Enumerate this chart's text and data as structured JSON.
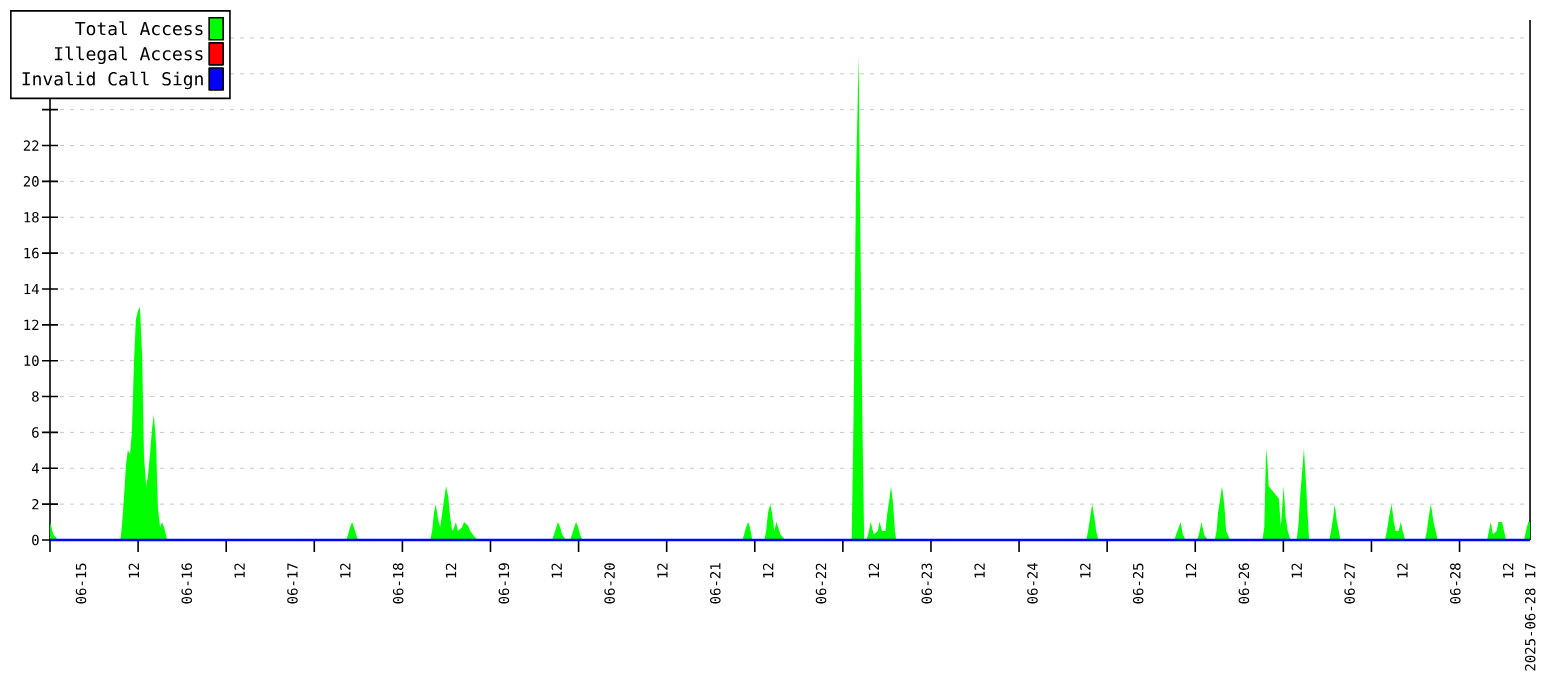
{
  "chart_data": {
    "type": "area",
    "xlim": [
      "2025-06-14T17:00",
      "2025-06-28T17:00"
    ],
    "ylim": [
      0,
      29
    ],
    "xticks": [
      {
        "value": "2025-06-15T00:00",
        "label": "06-15"
      },
      {
        "value": "2025-06-15T12:00",
        "label": "12"
      },
      {
        "value": "2025-06-16T00:00",
        "label": "06-16"
      },
      {
        "value": "2025-06-16T12:00",
        "label": "12"
      },
      {
        "value": "2025-06-17T00:00",
        "label": "06-17"
      },
      {
        "value": "2025-06-17T12:00",
        "label": "12"
      },
      {
        "value": "2025-06-18T00:00",
        "label": "06-18"
      },
      {
        "value": "2025-06-18T12:00",
        "label": "12"
      },
      {
        "value": "2025-06-19T00:00",
        "label": "06-19"
      },
      {
        "value": "2025-06-19T12:00",
        "label": "12"
      },
      {
        "value": "2025-06-20T00:00",
        "label": "06-20"
      },
      {
        "value": "2025-06-20T12:00",
        "label": "12"
      },
      {
        "value": "2025-06-21T00:00",
        "label": "06-21"
      },
      {
        "value": "2025-06-21T12:00",
        "label": "12"
      },
      {
        "value": "2025-06-22T00:00",
        "label": "06-22"
      },
      {
        "value": "2025-06-22T12:00",
        "label": "12"
      },
      {
        "value": "2025-06-23T00:00",
        "label": "06-23"
      },
      {
        "value": "2025-06-23T12:00",
        "label": "12"
      },
      {
        "value": "2025-06-24T00:00",
        "label": "06-24"
      },
      {
        "value": "2025-06-24T12:00",
        "label": "12"
      },
      {
        "value": "2025-06-25T00:00",
        "label": "06-25"
      },
      {
        "value": "2025-06-25T12:00",
        "label": "12"
      },
      {
        "value": "2025-06-26T00:00",
        "label": "06-26"
      },
      {
        "value": "2025-06-26T12:00",
        "label": "12"
      },
      {
        "value": "2025-06-27T00:00",
        "label": "06-27"
      },
      {
        "value": "2025-06-27T12:00",
        "label": "12"
      },
      {
        "value": "2025-06-28T00:00",
        "label": "06-28"
      },
      {
        "value": "2025-06-28T12:00",
        "label": "12"
      },
      {
        "value": "2025-06-28T17:00",
        "label": "2025-06-28 17"
      },
      {
        "value": "2025-06-14T17:00",
        "label": null
      },
      {
        "value": "2025-06-15T13:00",
        "label": null
      },
      {
        "value": "2025-06-16T09:00",
        "label": null
      },
      {
        "value": "2025-06-17T05:00",
        "label": null
      },
      {
        "value": "2025-06-18T01:00",
        "label": null
      },
      {
        "value": "2025-06-18T21:00",
        "label": null
      },
      {
        "value": "2025-06-19T17:00",
        "label": null
      },
      {
        "value": "2025-06-20T13:00",
        "label": null
      },
      {
        "value": "2025-06-21T09:00",
        "label": null
      },
      {
        "value": "2025-06-22T05:00",
        "label": null
      },
      {
        "value": "2025-06-23T01:00",
        "label": null
      },
      {
        "value": "2025-06-23T21:00",
        "label": null
      },
      {
        "value": "2025-06-24T17:00",
        "label": null
      },
      {
        "value": "2025-06-25T13:00",
        "label": null
      },
      {
        "value": "2025-06-26T09:00",
        "label": null
      },
      {
        "value": "2025-06-27T05:00",
        "label": null
      },
      {
        "value": "2025-06-28T01:00",
        "label": null
      }
    ],
    "yticks": [
      0,
      2,
      4,
      6,
      8,
      10,
      12,
      14,
      16,
      18,
      20,
      22,
      {
        "value": 24,
        "label": null
      },
      {
        "value": 26,
        "label": null
      },
      {
        "value": 28,
        "label": null
      }
    ],
    "grid": "y",
    "legend": "top left",
    "series": [
      {
        "name": "Total Access",
        "color": "#00ff00",
        "x": [
          "2025-06-14T17:00",
          "2025-06-14T17:45",
          "2025-06-14T18:50",
          "2025-06-15T09:00",
          "2025-06-15T09:20",
          "2025-06-15T09:50",
          "2025-06-15T10:15",
          "2025-06-15T10:40",
          "2025-06-15T11:10",
          "2025-06-15T11:35",
          "2025-06-15T12:05",
          "2025-06-15T12:30",
          "2025-06-15T13:00",
          "2025-06-15T13:25",
          "2025-06-15T13:55",
          "2025-06-15T14:20",
          "2025-06-15T14:50",
          "2025-06-15T15:15",
          "2025-06-15T15:40",
          "2025-06-15T16:10",
          "2025-06-15T16:35",
          "2025-06-15T17:05",
          "2025-06-15T17:30",
          "2025-06-15T18:00",
          "2025-06-15T18:25",
          "2025-06-15T18:55",
          "2025-06-15T19:35",
          "2025-06-17T12:15",
          "2025-06-17T12:40",
          "2025-06-17T13:05",
          "2025-06-17T13:35",
          "2025-06-17T14:00",
          "2025-06-17T14:30",
          "2025-06-17T14:55",
          "2025-06-18T07:20",
          "2025-06-18T07:45",
          "2025-06-18T08:10",
          "2025-06-18T08:35",
          "2025-06-18T09:05",
          "2025-06-18T09:35",
          "2025-06-18T10:30",
          "2025-06-18T10:55",
          "2025-06-18T11:25",
          "2025-06-18T11:50",
          "2025-06-18T12:20",
          "2025-06-18T12:45",
          "2025-06-18T13:10",
          "2025-06-18T13:35",
          "2025-06-18T14:30",
          "2025-06-18T15:00",
          "2025-06-18T15:55",
          "2025-06-18T16:25",
          "2025-06-18T17:20",
          "2025-06-18T18:10",
          "2025-06-19T11:00",
          "2025-06-19T11:25",
          "2025-06-19T11:55",
          "2025-06-19T12:20",
          "2025-06-19T12:50",
          "2025-06-19T13:15",
          "2025-06-19T14:10",
          "2025-06-19T15:05",
          "2025-06-19T15:30",
          "2025-06-19T16:25",
          "2025-06-19T16:55",
          "2025-06-19T17:20",
          "2025-06-19T17:50",
          "2025-06-21T06:10",
          "2025-06-21T06:35",
          "2025-06-21T07:00",
          "2025-06-21T07:30",
          "2025-06-21T07:55",
          "2025-06-21T08:25",
          "2025-06-21T11:10",
          "2025-06-21T11:35",
          "2025-06-21T12:00",
          "2025-06-21T12:30",
          "2025-06-21T12:55",
          "2025-06-21T13:25",
          "2025-06-21T13:55",
          "2025-06-21T14:20",
          "2025-06-21T14:50",
          "2025-06-21T15:55",
          "2025-06-22T07:00",
          "2025-06-22T07:25",
          "2025-06-22T08:00",
          "2025-06-22T08:35",
          "2025-06-22T08:50",
          "2025-06-22T09:25",
          "2025-06-22T09:50",
          "2025-06-22T10:20",
          "2025-06-22T10:45",
          "2025-06-22T11:20",
          "2025-06-22T12:00",
          "2025-06-22T12:55",
          "2025-06-22T13:20",
          "2025-06-22T13:55",
          "2025-06-22T14:40",
          "2025-06-22T15:05",
          "2025-06-22T15:35",
          "2025-06-22T15:55",
          "2025-06-22T16:20",
          "2025-06-22T16:50",
          "2025-06-22T17:05",
          "2025-06-24T12:15",
          "2025-06-24T12:40",
          "2025-06-24T13:10",
          "2025-06-24T13:35",
          "2025-06-24T14:05",
          "2025-06-24T14:30",
          "2025-06-24T15:00",
          "2025-06-25T08:15",
          "2025-06-25T08:40",
          "2025-06-25T09:15",
          "2025-06-25T09:40",
          "2025-06-25T10:10",
          "2025-06-25T10:50",
          "2025-06-25T13:25",
          "2025-06-25T13:50",
          "2025-06-25T14:25",
          "2025-06-25T15:00",
          "2025-06-25T15:50",
          "2025-06-25T17:25",
          "2025-06-25T17:50",
          "2025-06-25T18:10",
          "2025-06-25T18:40",
          "2025-06-25T19:05",
          "2025-06-25T19:35",
          "2025-06-25T20:00",
          "2025-06-25T20:55",
          "2025-06-26T04:15",
          "2025-06-26T04:40",
          "2025-06-26T05:05",
          "2025-06-26T05:25",
          "2025-06-26T05:40",
          "2025-06-26T08:00",
          "2025-06-26T08:25",
          "2025-06-26T09:05",
          "2025-06-26T09:30",
          "2025-06-26T10:00",
          "2025-06-26T10:35",
          "2025-06-26T12:00",
          "2025-06-26T12:25",
          "2025-06-26T12:50",
          "2025-06-26T13:20",
          "2025-06-26T13:40",
          "2025-06-26T14:10",
          "2025-06-26T14:50",
          "2025-06-26T19:25",
          "2025-06-26T19:50",
          "2025-06-26T20:20",
          "2025-06-26T20:40",
          "2025-06-26T21:10",
          "2025-06-26T21:35",
          "2025-06-26T21:55",
          "2025-06-27T08:05",
          "2025-06-27T08:30",
          "2025-06-27T09:00",
          "2025-06-27T09:35",
          "2025-06-27T10:05",
          "2025-06-27T10:30",
          "2025-06-27T11:10",
          "2025-06-27T11:40",
          "2025-06-27T12:05",
          "2025-06-27T12:40",
          "2025-06-27T17:10",
          "2025-06-27T17:35",
          "2025-06-27T18:00",
          "2025-06-27T18:30",
          "2025-06-27T19:05",
          "2025-06-27T19:35",
          "2025-06-27T20:00",
          "2025-06-28T07:15",
          "2025-06-28T07:40",
          "2025-06-28T08:05",
          "2025-06-28T08:35",
          "2025-06-28T09:25",
          "2025-06-28T09:50",
          "2025-06-28T10:40",
          "2025-06-28T11:05",
          "2025-06-28T11:35",
          "2025-06-28T15:40",
          "2025-06-28T16:05",
          "2025-06-28T16:35",
          "2025-06-28T17:00"
        ],
        "values": [
          1,
          0.3,
          0,
          0,
          0.8,
          2.5,
          4.2,
          5,
          4.8,
          6,
          10,
          12.3,
          12.8,
          13,
          10.3,
          4.7,
          3,
          3.6,
          4.7,
          6.2,
          7,
          5.3,
          1.8,
          0.7,
          1,
          0.7,
          0,
          0,
          0.3,
          0.7,
          1,
          0.7,
          0.3,
          0,
          0,
          0.5,
          1.5,
          2,
          1.2,
          0.7,
          2.3,
          3,
          2.4,
          1.3,
          0.5,
          0.7,
          1,
          0.5,
          0.7,
          1,
          0.8,
          0.5,
          0.2,
          0,
          0,
          0.3,
          0.7,
          1,
          0.7,
          0.3,
          0,
          0,
          0.3,
          1,
          0.7,
          0.3,
          0,
          0,
          0.3,
          0.7,
          1,
          0.7,
          0,
          0,
          0.5,
          1.5,
          2,
          1.5,
          0.5,
          1,
          0.7,
          0.3,
          0,
          0,
          6.8,
          20.4,
          27,
          20.4,
          6.8,
          0,
          0,
          0.3,
          1,
          0.3,
          0.5,
          1,
          0.5,
          0.5,
          1.5,
          2.3,
          3,
          2.2,
          0.5,
          0,
          0,
          0.5,
          1.3,
          2,
          1.3,
          0.5,
          0,
          0,
          0.3,
          0.7,
          1,
          0.3,
          0,
          0,
          0.3,
          1,
          0.3,
          0,
          0,
          0.5,
          1.5,
          2.3,
          3,
          2,
          0.5,
          0,
          0,
          0.7,
          5.1,
          4.2,
          3,
          2.3,
          0.7,
          3,
          1.3,
          0.5,
          0,
          0,
          0.8,
          2.5,
          4,
          5.1,
          3,
          0,
          0,
          0.5,
          1.3,
          2,
          1,
          0.5,
          0,
          0,
          0.5,
          1.3,
          2,
          1,
          0.5,
          0.5,
          1,
          0.5,
          0,
          0,
          0.5,
          1.3,
          2,
          1,
          0.5,
          0,
          0,
          0.5,
          1,
          0.3,
          0.5,
          1,
          1,
          0.5,
          0,
          0,
          0.5,
          1,
          1
        ]
      },
      {
        "name": "Illegal Access",
        "color": "#ff0000",
        "type": "line"
      },
      {
        "name": "Invalid Call Sign",
        "color": "#0000ff",
        "type": "line",
        "x": [
          "2025-06-14T17:00",
          "2025-06-28T17:00"
        ],
        "values": [
          0,
          0
        ]
      }
    ]
  }
}
